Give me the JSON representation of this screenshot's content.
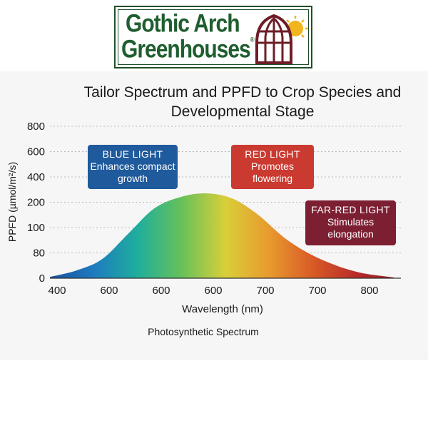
{
  "logo": {
    "line1": "Gothic Arch",
    "line2": "Greenhouses",
    "registered_mark": "®"
  },
  "chart_data": {
    "type": "area",
    "title": "Tailor Spectrum and PPFD to Crop Species and Developmental Stage",
    "xlabel": "Wavelength (nm)",
    "ylabel": "PPFD (µmol/m²/s)",
    "x_tick_labels": [
      "400",
      "600",
      "600",
      "600",
      "700",
      "700",
      "800"
    ],
    "y_tick_labels": [
      "0",
      "80",
      "100",
      "200",
      "400",
      "600",
      "800"
    ],
    "grid": true,
    "legend": "none",
    "series": [
      {
        "x_positions": [
          0,
          0.5,
          1,
          1.5,
          2,
          2.5,
          3,
          3.5,
          4,
          4.5,
          5,
          5.5,
          6,
          6.6
        ],
        "y_positions": [
          0.05,
          0.3,
          0.75,
          1.75,
          2.75,
          3.2,
          3.35,
          3.15,
          2.5,
          1.6,
          0.95,
          0.5,
          0.2,
          0.03
        ]
      }
    ],
    "gradient_colors": [
      "#1c4f9e",
      "#1e7bc0",
      "#1fae9c",
      "#66c15a",
      "#d9cf3a",
      "#e89a2e",
      "#d85a26",
      "#b82a2a",
      "#8e1f26"
    ],
    "annotations": [
      {
        "title": "BLUE LIGHT",
        "text": "Enhances compact growth",
        "color": "#1f5a9c"
      },
      {
        "title": "RED LIGHT",
        "text": "Promotes flowering",
        "color": "#cb3a30"
      },
      {
        "title": "FAR-RED LIGHT",
        "text": "Stimulates elongation",
        "color": "#7d1f33"
      }
    ]
  },
  "caption": "Photosynthetic Spectrum"
}
